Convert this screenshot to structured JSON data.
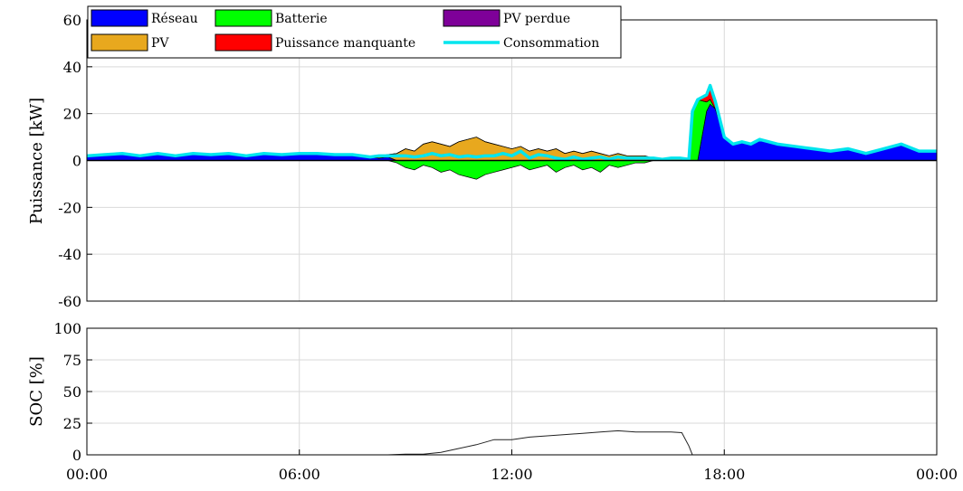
{
  "chart_data": [
    {
      "type": "area",
      "ylabel": "Puissance [kW]",
      "ylim": [
        -60,
        60
      ],
      "yticks": [
        60,
        40,
        20,
        0,
        -20,
        -40,
        -60
      ],
      "xlim_hours": [
        0,
        24
      ],
      "grid": true,
      "legend_position": "top-left",
      "legend": [
        {
          "label": "Réseau",
          "color": "#0000ff",
          "kind": "patch"
        },
        {
          "label": "Batterie",
          "color": "#00ff00",
          "kind": "patch"
        },
        {
          "label": "PV perdue",
          "color": "#7e0099",
          "kind": "patch"
        },
        {
          "label": "PV",
          "color": "#e8a81e",
          "kind": "patch"
        },
        {
          "label": "Puissance manquante",
          "color": "#ff0000",
          "kind": "patch"
        },
        {
          "label": "Consommation",
          "color": "#00e5ee",
          "kind": "line"
        }
      ],
      "x_hours": [
        0,
        0.5,
        1,
        1.5,
        2,
        2.5,
        3,
        3.5,
        4,
        4.5,
        5,
        5.5,
        6,
        6.5,
        7,
        7.5,
        8,
        8.25,
        8.5,
        8.75,
        9,
        9.25,
        9.5,
        9.75,
        10,
        10.25,
        10.5,
        10.75,
        11,
        11.25,
        11.5,
        11.75,
        12,
        12.25,
        12.5,
        12.75,
        13,
        13.25,
        13.5,
        13.75,
        14,
        14.25,
        14.5,
        14.75,
        15,
        15.25,
        15.5,
        15.75,
        16,
        16.25,
        16.5,
        16.75,
        17,
        17.1,
        17.25,
        17.5,
        17.6,
        17.75,
        18,
        18.25,
        18.5,
        18.75,
        19,
        19.5,
        20,
        20.5,
        21,
        21.5,
        22,
        22.5,
        23,
        23.5,
        24
      ],
      "series": [
        {
          "name": "Réseau",
          "values": [
            2,
            2.5,
            3,
            2,
            3,
            2,
            3,
            2.5,
            3,
            2,
            3,
            2.5,
            3,
            3,
            2.5,
            2.5,
            1.5,
            1,
            1.5,
            0,
            0,
            0,
            0,
            0,
            0,
            0,
            0,
            0,
            0,
            0,
            0,
            0,
            0,
            0,
            0,
            0,
            0,
            0,
            0,
            0,
            0,
            0,
            0,
            0,
            0,
            0,
            0,
            0,
            0,
            0,
            0,
            0,
            0,
            0,
            0,
            21,
            24,
            22,
            10,
            7,
            8,
            7,
            9,
            7,
            6,
            5,
            4,
            5,
            3,
            5,
            7,
            4,
            4
          ]
        },
        {
          "name": "Batterie",
          "values": [
            0,
            0,
            0,
            0,
            0,
            0,
            0,
            0,
            0,
            0,
            0,
            0,
            0,
            0,
            0,
            0,
            0,
            0,
            0,
            -1,
            -3,
            -4,
            -2,
            -3,
            -5,
            -4,
            -6,
            -7,
            -8,
            -6,
            -5,
            -4,
            -3,
            -2,
            -4,
            -3,
            -2,
            -5,
            -3,
            -2,
            -4,
            -3,
            -5,
            -2,
            -3,
            -2,
            -1,
            -1,
            0,
            0,
            0,
            0,
            0,
            20,
            26,
            4,
            2,
            0,
            0,
            0,
            0,
            0,
            0,
            0,
            0,
            0,
            0,
            0,
            0,
            0,
            0,
            0,
            0
          ]
        },
        {
          "name": "PV",
          "values": [
            0,
            0,
            0,
            0,
            0,
            0,
            0,
            0,
            0,
            0,
            0,
            0,
            0,
            0,
            0,
            0,
            0,
            1,
            1,
            3,
            5,
            4,
            7,
            8,
            7,
            6,
            8,
            9,
            10,
            8,
            7,
            6,
            5,
            6,
            4,
            5,
            4,
            5,
            3,
            4,
            3,
            4,
            3,
            2,
            3,
            2,
            2,
            2,
            1,
            1,
            1,
            0.5,
            0,
            0,
            0,
            0,
            0,
            0,
            0,
            0,
            0,
            0,
            0,
            0,
            0,
            0,
            0,
            0,
            0,
            0,
            0,
            0,
            0
          ]
        },
        {
          "name": "Puissance manquante",
          "values": [
            0,
            0,
            0,
            0,
            0,
            0,
            0,
            0,
            0,
            0,
            0,
            0,
            0,
            0,
            0,
            0,
            0,
            0,
            0,
            0,
            0,
            0,
            0,
            0,
            0,
            0,
            0,
            0,
            0,
            0,
            0,
            0,
            0,
            0,
            0,
            0,
            0,
            0,
            0,
            0,
            0,
            0,
            0,
            0,
            0,
            0,
            0,
            0,
            0,
            0,
            0,
            0,
            0,
            0,
            0,
            3,
            6,
            3,
            0,
            0,
            0,
            0,
            0,
            0,
            0,
            0,
            0,
            0,
            0,
            0,
            0,
            0,
            0
          ]
        },
        {
          "name": "Consommation",
          "values": [
            2,
            2.5,
            3,
            2,
            3,
            2,
            3,
            2.5,
            3,
            2,
            3,
            2.5,
            3,
            3,
            2.5,
            2.5,
            1.5,
            2,
            2,
            2,
            2,
            1.5,
            2,
            3,
            2,
            2.5,
            1.5,
            2,
            1.5,
            2,
            2,
            3,
            2,
            4,
            1,
            2.5,
            2,
            1,
            0.5,
            1.5,
            0.5,
            1,
            1.5,
            0.5,
            1.5,
            1,
            1,
            1,
            1,
            0.5,
            1,
            1,
            0.5,
            21,
            26,
            28,
            32,
            25,
            10,
            7,
            8,
            7,
            9,
            7,
            6,
            5,
            4,
            5,
            3,
            5,
            7,
            4,
            4
          ]
        }
      ]
    },
    {
      "type": "line",
      "ylabel": "SOC [%]",
      "ylim": [
        0,
        100
      ],
      "yticks": [
        100,
        75,
        50,
        25,
        0
      ],
      "xlim_hours": [
        0,
        24
      ],
      "xticks": [
        "00:00",
        "06:00",
        "12:00",
        "18:00",
        "00:00"
      ],
      "grid": true,
      "series": [
        {
          "x_hours": [
            0,
            8.5,
            9,
            9.5,
            10,
            10.5,
            11,
            11.5,
            12,
            12.5,
            13,
            13.5,
            14,
            14.5,
            15,
            15.5,
            16,
            16.5,
            16.8,
            17,
            17.1,
            17.2,
            24
          ],
          "values": [
            0,
            0,
            0.5,
            0.5,
            2,
            5,
            8,
            12,
            12,
            14,
            15,
            16,
            17,
            18,
            19,
            18,
            18,
            18,
            17.5,
            7,
            0,
            0,
            0
          ]
        }
      ]
    }
  ]
}
